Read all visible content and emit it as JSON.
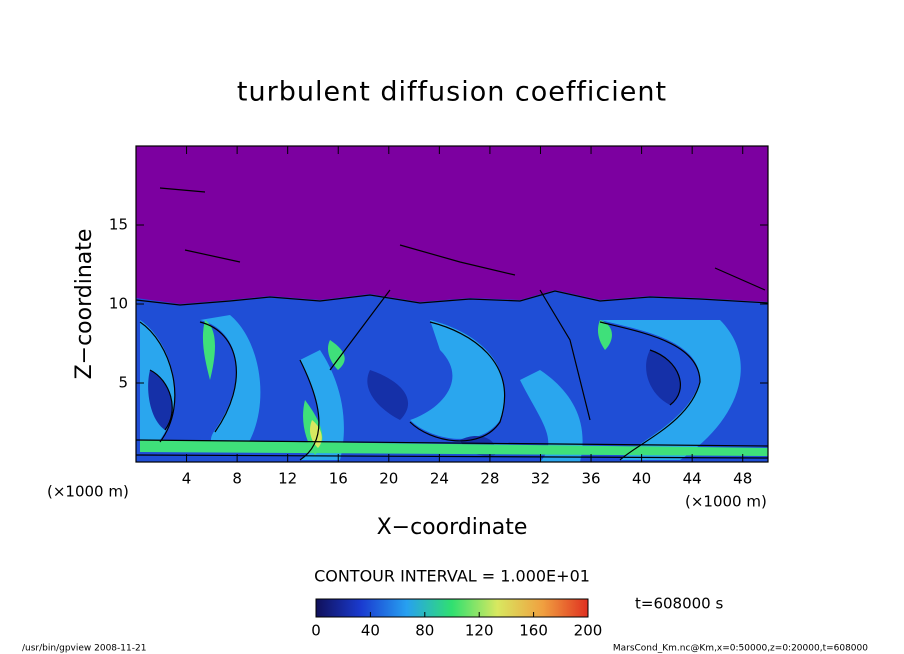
{
  "chart_data": {
    "type": "contour",
    "title": "turbulent diffusion coefficient",
    "x_label": "X−coordinate",
    "y_label": "Z−coordinate",
    "x_unit_label": "(×1000 m)",
    "y_unit_label": "(×1000 m)",
    "xlim": [
      0,
      50
    ],
    "xticks": [
      4,
      8,
      12,
      16,
      20,
      24,
      28,
      32,
      36,
      40,
      44,
      48
    ],
    "ylim": [
      0,
      20
    ],
    "yticks": [
      5,
      10,
      15
    ],
    "colorbar": {
      "lim": [
        0,
        200
      ],
      "ticks": [
        0,
        40,
        80,
        120,
        160,
        200
      ],
      "colors": [
        "#10105a",
        "#1a3bd0",
        "#27a0f0",
        "#30e070",
        "#d8e860",
        "#f0a040",
        "#e03020"
      ]
    },
    "contour_interval_label": "CONTOUR INTERVAL = 1.000E+01",
    "time_label": "t=608000 s"
  },
  "footer": {
    "left": "/usr/bin/gpview  2008-11-21",
    "right": "MarsCond_Km.nc@Km,x=0:50000,z=0:20000,t=608000"
  }
}
